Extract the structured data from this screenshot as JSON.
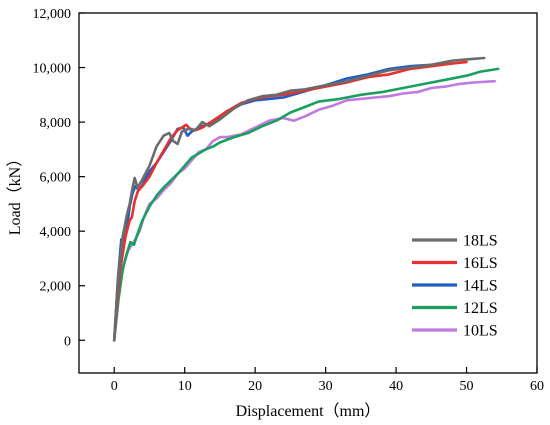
{
  "chart_data": {
    "type": "line",
    "xlabel": "Displacement（mm）",
    "ylabel": "Load（kN）",
    "xlim": [
      -5,
      60
    ],
    "ylim": [
      -1200,
      12000
    ],
    "xticks": [
      0,
      10,
      20,
      30,
      40,
      50,
      60
    ],
    "yticks": [
      0,
      2000,
      4000,
      6000,
      8000,
      10000,
      12000
    ],
    "ytick_labels": [
      "0",
      "2,000",
      "4,000",
      "6,000",
      "8,000",
      "10,000",
      "12,000"
    ],
    "legend_position": "lower-right",
    "series": [
      {
        "name": "18LS",
        "color": "#6b6b6b",
        "x": [
          0,
          0.6,
          1.2,
          1.8,
          2.2,
          2.6,
          2.9,
          3.3,
          4,
          5,
          6,
          7,
          7.8,
          8.4,
          9,
          9.6,
          10.5,
          11.5,
          12.5,
          13.5,
          15,
          17,
          19,
          21,
          23,
          25,
          27,
          30,
          33,
          36,
          39,
          42,
          45,
          48,
          50,
          52.5
        ],
        "y": [
          0,
          2400,
          3800,
          4600,
          5000,
          5600,
          5950,
          5600,
          5900,
          6400,
          7100,
          7500,
          7600,
          7300,
          7200,
          7650,
          7750,
          7700,
          8000,
          7850,
          8100,
          8500,
          8800,
          8950,
          9000,
          9150,
          9200,
          9350,
          9500,
          9700,
          9900,
          10000,
          10100,
          10250,
          10300,
          10350
        ]
      },
      {
        "name": "16LS",
        "color": "#e8312d",
        "x": [
          0,
          0.8,
          1.6,
          2.2,
          2.5,
          2.9,
          3.4,
          4,
          5,
          6,
          7,
          8,
          9,
          9.6,
          10.2,
          10.8,
          11.5,
          12.5,
          14,
          16,
          18,
          20,
          22,
          24,
          26,
          28,
          30,
          33,
          36,
          39,
          42,
          45,
          48,
          50
        ],
        "y": [
          0,
          2500,
          3800,
          4400,
          4500,
          5100,
          5500,
          5650,
          6000,
          6500,
          6950,
          7400,
          7700,
          7800,
          7900,
          7750,
          7700,
          7800,
          8050,
          8400,
          8700,
          8850,
          8950,
          9000,
          9100,
          9200,
          9300,
          9450,
          9650,
          9750,
          9950,
          10050,
          10150,
          10200
        ]
      },
      {
        "name": "14LS",
        "color": "#1f5fc4",
        "x": [
          0,
          0.5,
          1,
          1.4,
          1.8,
          2.2,
          2.6,
          3,
          3.5,
          4,
          5,
          6,
          7,
          8,
          9,
          9.8,
          10.4,
          11,
          12,
          14,
          16,
          18,
          20,
          22,
          24,
          26,
          28,
          30,
          33,
          36,
          39,
          42,
          45,
          48
        ],
        "y": [
          0,
          2200,
          3700,
          3600,
          4100,
          4900,
          5400,
          5650,
          5500,
          5700,
          6200,
          6500,
          6900,
          7300,
          7750,
          7800,
          7500,
          7650,
          7800,
          8000,
          8400,
          8650,
          8800,
          8850,
          8900,
          9050,
          9200,
          9350,
          9600,
          9750,
          9950,
          10050,
          10100,
          10150
        ]
      },
      {
        "name": "12LS",
        "color": "#1aa05e",
        "x": [
          0,
          0.6,
          1.2,
          1.8,
          2.3,
          2.8,
          3.3,
          4,
          5,
          6,
          7,
          8,
          9,
          10,
          11,
          12,
          13,
          14,
          15,
          17,
          19,
          21,
          23,
          25,
          27,
          29,
          32,
          35,
          38,
          41,
          44,
          47,
          50,
          52,
          54.5
        ],
        "y": [
          0,
          1500,
          2600,
          3200,
          3600,
          3500,
          3900,
          4400,
          4900,
          5300,
          5600,
          5850,
          6100,
          6400,
          6700,
          6850,
          7000,
          7100,
          7250,
          7450,
          7600,
          7850,
          8050,
          8350,
          8550,
          8750,
          8850,
          9000,
          9100,
          9250,
          9400,
          9550,
          9700,
          9850,
          9950
        ]
      },
      {
        "name": "10LS",
        "color": "#c07ae0",
        "x": [
          0,
          0.5,
          1,
          1.5,
          2,
          2.5,
          3,
          3.6,
          4.2,
          5,
          6,
          7,
          8,
          9,
          10,
          11,
          12,
          13,
          14,
          15,
          16,
          18,
          20,
          22,
          24,
          25.5,
          27,
          29,
          31,
          33,
          35,
          37,
          39,
          41,
          43,
          45,
          47,
          49,
          51,
          54
        ],
        "y": [
          0,
          1400,
          2300,
          2900,
          3300,
          3500,
          3700,
          4000,
          4500,
          5000,
          5200,
          5500,
          5750,
          6100,
          6300,
          6600,
          6900,
          7000,
          7300,
          7450,
          7450,
          7550,
          7800,
          8050,
          8150,
          8050,
          8200,
          8450,
          8600,
          8800,
          8850,
          8900,
          8950,
          9050,
          9100,
          9250,
          9300,
          9400,
          9450,
          9500
        ]
      }
    ]
  }
}
